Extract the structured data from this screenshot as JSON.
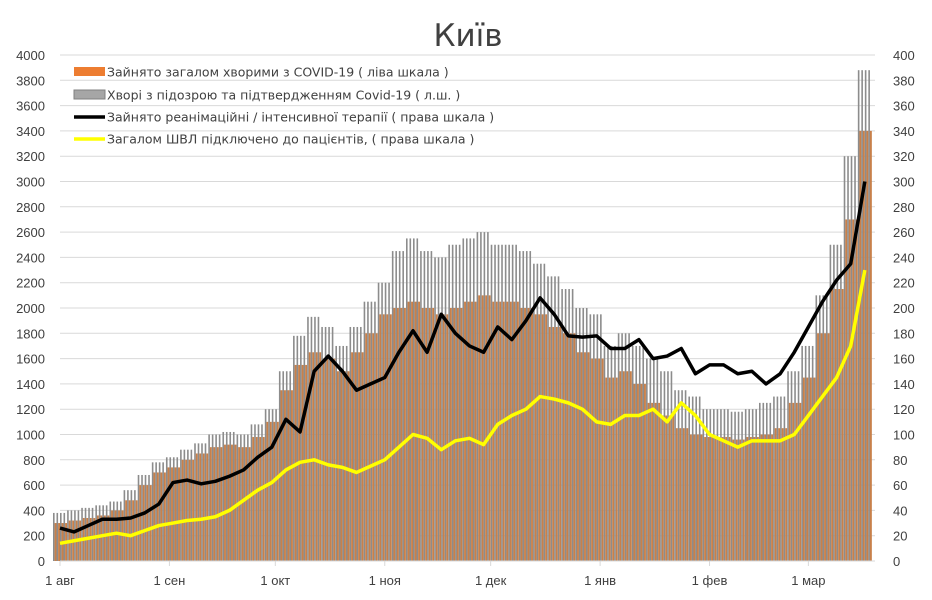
{
  "chart_data": {
    "type": "bar+line",
    "title": "Київ",
    "x_tick_labels": [
      "1 авг",
      "1 сен",
      "1 окт",
      "1 ноя",
      "1 дек",
      "1 янв",
      "1 фев",
      "1 мар"
    ],
    "x_tick_dates": [
      "2020-08-01",
      "2020-09-01",
      "2020-10-01",
      "2020-11-01",
      "2020-12-01",
      "2021-01-01",
      "2021-02-01",
      "2021-03-01"
    ],
    "y_left": {
      "range": [
        0,
        4000
      ],
      "ticks": [
        0,
        200,
        400,
        600,
        800,
        1000,
        1200,
        1400,
        1600,
        1800,
        2000,
        2200,
        2400,
        2600,
        2800,
        3000,
        3200,
        3400,
        3600,
        3800,
        4000
      ]
    },
    "y_right": {
      "range": [
        0,
        400
      ],
      "ticks": [
        0,
        20,
        40,
        60,
        80,
        100,
        120,
        140,
        160,
        180,
        200,
        220,
        240,
        260,
        280,
        300,
        320,
        340,
        360,
        380,
        400
      ]
    },
    "grid": true,
    "legend_placement": "top-left",
    "x": [
      "2020-08-01",
      "2020-08-05",
      "2020-08-09",
      "2020-08-13",
      "2020-08-17",
      "2020-08-21",
      "2020-08-25",
      "2020-08-29",
      "2020-09-02",
      "2020-09-06",
      "2020-09-10",
      "2020-09-14",
      "2020-09-18",
      "2020-09-22",
      "2020-09-26",
      "2020-09-30",
      "2020-10-04",
      "2020-10-08",
      "2020-10-12",
      "2020-10-16",
      "2020-10-20",
      "2020-10-24",
      "2020-10-28",
      "2020-11-01",
      "2020-11-05",
      "2020-11-09",
      "2020-11-13",
      "2020-11-17",
      "2020-11-21",
      "2020-11-25",
      "2020-11-29",
      "2020-12-03",
      "2020-12-07",
      "2020-12-11",
      "2020-12-15",
      "2020-12-19",
      "2020-12-23",
      "2020-12-27",
      "2020-12-31",
      "2021-01-04",
      "2021-01-08",
      "2021-01-12",
      "2021-01-16",
      "2021-01-20",
      "2021-01-24",
      "2021-01-28",
      "2021-02-01",
      "2021-02-05",
      "2021-02-09",
      "2021-02-13",
      "2021-02-17",
      "2021-02-21",
      "2021-02-25",
      "2021-03-01",
      "2021-03-05",
      "2021-03-09",
      "2021-03-13",
      "2021-03-17"
    ],
    "series": [
      {
        "name": "Хворі з підозрою та підтвердженням Covid-19 ( л.ш. )",
        "type": "bar",
        "axis": "left",
        "color": "#8c8c8c",
        "values": [
          380,
          400,
          420,
          440,
          470,
          560,
          680,
          780,
          820,
          880,
          930,
          1000,
          1020,
          1000,
          1080,
          1200,
          1500,
          1780,
          1930,
          1850,
          1700,
          1850,
          2050,
          2200,
          2450,
          2550,
          2450,
          2400,
          2500,
          2550,
          2600,
          2500,
          2500,
          2450,
          2350,
          2250,
          2150,
          2000,
          1950,
          1700,
          1800,
          1700,
          1600,
          1500,
          1350,
          1300,
          1200,
          1200,
          1180,
          1200,
          1250,
          1300,
          1500,
          1700,
          2100,
          2500,
          3200,
          3880
        ]
      },
      {
        "name": "Зайнято загалом хворими з COVID-19 ( ліва шкала )",
        "type": "bar",
        "axis": "left",
        "color": "#c8804a",
        "values": [
          300,
          320,
          340,
          360,
          400,
          480,
          600,
          700,
          740,
          800,
          850,
          900,
          920,
          900,
          980,
          1100,
          1350,
          1550,
          1650,
          1600,
          1500,
          1650,
          1800,
          1950,
          2000,
          2050,
          2000,
          1950,
          2000,
          2050,
          2100,
          2050,
          2050,
          2000,
          1950,
          1850,
          1800,
          1650,
          1600,
          1450,
          1500,
          1400,
          1250,
          1150,
          1050,
          1000,
          980,
          980,
          960,
          980,
          1000,
          1050,
          1250,
          1450,
          1800,
          2150,
          2700,
          3400
        ]
      },
      {
        "name": "Зайнято реанімаційні / інтенсивної терапії ( права шкала )",
        "type": "line",
        "axis": "right",
        "color": "#000000",
        "values": [
          26,
          23,
          28,
          33,
          33,
          34,
          38,
          45,
          62,
          64,
          61,
          63,
          67,
          72,
          82,
          90,
          112,
          102,
          150,
          162,
          150,
          135,
          140,
          145,
          165,
          182,
          165,
          195,
          180,
          170,
          165,
          185,
          175,
          190,
          208,
          195,
          178,
          177,
          178,
          168,
          168,
          175,
          160,
          162,
          168,
          148,
          155,
          155,
          148,
          150,
          140,
          148,
          165,
          185,
          205,
          222,
          235,
          300
        ]
      },
      {
        "name": "Загалом ШВЛ  підключено до пацієнтів, ( права шкала )",
        "type": "line",
        "axis": "right",
        "color": "#ffff00",
        "values": [
          14,
          16,
          18,
          20,
          22,
          20,
          24,
          28,
          30,
          32,
          33,
          35,
          40,
          48,
          56,
          62,
          72,
          78,
          80,
          76,
          74,
          70,
          75,
          80,
          90,
          100,
          97,
          88,
          95,
          97,
          92,
          108,
          115,
          120,
          130,
          128,
          125,
          120,
          110,
          108,
          115,
          115,
          120,
          110,
          125,
          115,
          100,
          95,
          90,
          95,
          95,
          95,
          100,
          115,
          130,
          145,
          170,
          230
        ]
      }
    ],
    "legend_order": [
      1,
      0,
      2,
      3
    ]
  }
}
